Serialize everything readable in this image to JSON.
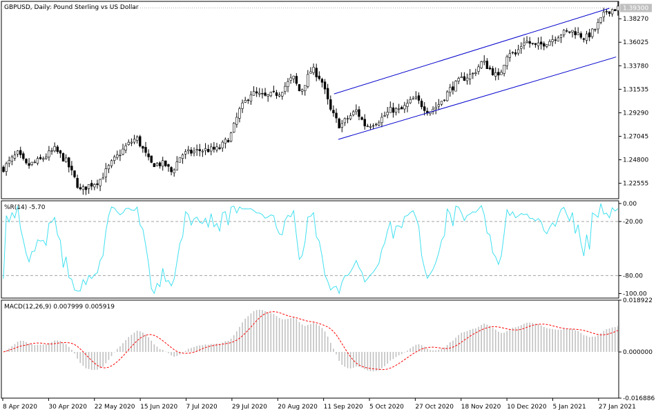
{
  "chart_data": [
    {
      "type": "candlestick",
      "title": "GBPUSD, Daily:  Pound Sterling vs US Dollar",
      "symbol": "GBPUSD",
      "timeframe": "Daily",
      "description": "Pound Sterling vs US Dollar",
      "current_price": "1.39300",
      "y_ticks": [
        "1.38270",
        "1.36025",
        "1.33780",
        "1.31535",
        "1.29290",
        "1.27045",
        "1.24800",
        "1.22555"
      ],
      "ylim": [
        1.2108,
        1.3993
      ],
      "channel": {
        "upper": {
          "from": [
            "11 Sep 2020",
            1.3109
          ],
          "to": [
            "2 Feb 2021",
            1.3927
          ]
        },
        "lower": {
          "from": [
            "14 Sep 2020",
            1.2675
          ],
          "to": [
            "5 Feb 2021",
            1.3462
          ]
        }
      },
      "colors": {
        "up": "#ffffff",
        "down": "#000000",
        "wick": "#000000",
        "channel": "#0000cd",
        "price_label_bg": "#c0c0c0"
      }
    },
    {
      "type": "line",
      "title": "%R(14) -5.70",
      "indicator": "Williams %R",
      "period": 14,
      "last_value": "-5.70",
      "y_ticks": [
        "0.00",
        "-20.00",
        "-80.00",
        "-100.00"
      ],
      "levels": [
        -20,
        -80
      ],
      "ylim": [
        -105,
        3
      ],
      "colors": {
        "line": "#40e0f0",
        "levels": "#a0a0a0"
      }
    },
    {
      "type": "bar+line",
      "title": "MACD(12,26,9) 0.007999 0.005919",
      "indicator": "MACD",
      "params": [
        12,
        26,
        9
      ],
      "macd_value": "0.007999",
      "signal_value": "0.005919",
      "y_ticks": [
        "0.018922",
        "0.000000",
        "-0.016886"
      ],
      "ylim": [
        -0.016886,
        0.018922
      ],
      "colors": {
        "histogram": "#c0c0c0",
        "signal": "#ff0000"
      }
    }
  ],
  "x_labels": [
    "8 Apr 2020",
    "30 Apr 2020",
    "22 May 2020",
    "15 Jun 2020",
    "7 Jul 2020",
    "29 Jul 2020",
    "20 Aug 2020",
    "11 Sep 2020",
    "5 Oct 2020",
    "27 Oct 2020",
    "18 Nov 2020",
    "10 Dec 2020",
    "5 Jan 2021",
    "27 Jan 2021"
  ]
}
